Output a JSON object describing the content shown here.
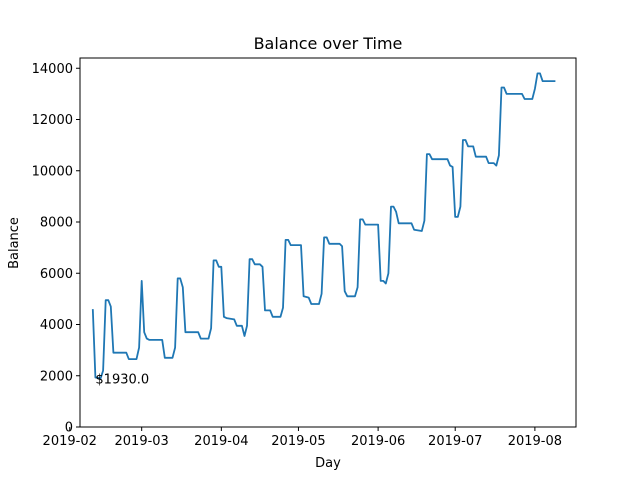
{
  "chart_data": {
    "type": "line",
    "title": "Balance over Time",
    "xlabel": "Day",
    "ylabel": "Balance",
    "xlim": [
      "2019-02-05",
      "2019-08-17"
    ],
    "ylim": [
      0,
      14400
    ],
    "grid": false,
    "line_color": "#1f77b4",
    "x_ticks": [
      {
        "value": "2019-02-01",
        "label": "2019-02"
      },
      {
        "value": "2019-03-01",
        "label": "2019-03"
      },
      {
        "value": "2019-04-01",
        "label": "2019-04"
      },
      {
        "value": "2019-05-01",
        "label": "2019-05"
      },
      {
        "value": "2019-06-01",
        "label": "2019-06"
      },
      {
        "value": "2019-07-01",
        "label": "2019-07"
      },
      {
        "value": "2019-08-01",
        "label": "2019-08"
      }
    ],
    "y_ticks": [
      {
        "value": 0,
        "label": "0"
      },
      {
        "value": 2000,
        "label": "2000"
      },
      {
        "value": 4000,
        "label": "4000"
      },
      {
        "value": 6000,
        "label": "6000"
      },
      {
        "value": 8000,
        "label": "8000"
      },
      {
        "value": 10000,
        "label": "10000"
      },
      {
        "value": 12000,
        "label": "12000"
      },
      {
        "value": 14000,
        "label": "14000"
      }
    ],
    "annotation": {
      "text": "$1930.0",
      "x": "2019-02-11",
      "y": 1930
    },
    "series": [
      {
        "points": [
          [
            "2019-02-10",
            4600
          ],
          [
            "2019-02-11",
            1930
          ],
          [
            "2019-02-13",
            1900
          ],
          [
            "2019-02-14",
            2200
          ],
          [
            "2019-02-15",
            4950
          ],
          [
            "2019-02-16",
            4950
          ],
          [
            "2019-02-17",
            4700
          ],
          [
            "2019-02-18",
            2900
          ],
          [
            "2019-02-22",
            2900
          ],
          [
            "2019-02-23",
            2900
          ],
          [
            "2019-02-24",
            2650
          ],
          [
            "2019-02-27",
            2650
          ],
          [
            "2019-02-28",
            3100
          ],
          [
            "2019-03-01",
            5700
          ],
          [
            "2019-03-02",
            3700
          ],
          [
            "2019-03-03",
            3450
          ],
          [
            "2019-03-04",
            3400
          ],
          [
            "2019-03-09",
            3400
          ],
          [
            "2019-03-10",
            2700
          ],
          [
            "2019-03-13",
            2700
          ],
          [
            "2019-03-14",
            3100
          ],
          [
            "2019-03-15",
            5800
          ],
          [
            "2019-03-16",
            5800
          ],
          [
            "2019-03-17",
            5450
          ],
          [
            "2019-03-18",
            3700
          ],
          [
            "2019-03-23",
            3700
          ],
          [
            "2019-03-24",
            3450
          ],
          [
            "2019-03-27",
            3450
          ],
          [
            "2019-03-28",
            3850
          ],
          [
            "2019-03-29",
            6500
          ],
          [
            "2019-03-30",
            6500
          ],
          [
            "2019-03-31",
            6250
          ],
          [
            "2019-04-01",
            6250
          ],
          [
            "2019-04-02",
            4300
          ],
          [
            "2019-04-03",
            4250
          ],
          [
            "2019-04-06",
            4200
          ],
          [
            "2019-04-07",
            3950
          ],
          [
            "2019-04-09",
            3950
          ],
          [
            "2019-04-10",
            3550
          ],
          [
            "2019-04-11",
            3950
          ],
          [
            "2019-04-12",
            6550
          ],
          [
            "2019-04-13",
            6550
          ],
          [
            "2019-04-14",
            6350
          ],
          [
            "2019-04-16",
            6350
          ],
          [
            "2019-04-17",
            6250
          ],
          [
            "2019-04-18",
            4550
          ],
          [
            "2019-04-20",
            4550
          ],
          [
            "2019-04-21",
            4300
          ],
          [
            "2019-04-24",
            4300
          ],
          [
            "2019-04-25",
            4650
          ],
          [
            "2019-04-26",
            7300
          ],
          [
            "2019-04-27",
            7300
          ],
          [
            "2019-04-28",
            7100
          ],
          [
            "2019-05-02",
            7100
          ],
          [
            "2019-05-03",
            5100
          ],
          [
            "2019-05-05",
            5050
          ],
          [
            "2019-05-06",
            4800
          ],
          [
            "2019-05-09",
            4800
          ],
          [
            "2019-05-10",
            5200
          ],
          [
            "2019-05-11",
            7400
          ],
          [
            "2019-05-12",
            7400
          ],
          [
            "2019-05-13",
            7150
          ],
          [
            "2019-05-17",
            7150
          ],
          [
            "2019-05-18",
            7050
          ],
          [
            "2019-05-19",
            5300
          ],
          [
            "2019-05-20",
            5100
          ],
          [
            "2019-05-23",
            5100
          ],
          [
            "2019-05-24",
            5450
          ],
          [
            "2019-05-25",
            8100
          ],
          [
            "2019-05-26",
            8100
          ],
          [
            "2019-05-27",
            7900
          ],
          [
            "2019-06-01",
            7900
          ],
          [
            "2019-06-02",
            5700
          ],
          [
            "2019-06-03",
            5700
          ],
          [
            "2019-06-04",
            5600
          ],
          [
            "2019-06-05",
            6000
          ],
          [
            "2019-06-06",
            8600
          ],
          [
            "2019-06-07",
            8600
          ],
          [
            "2019-06-08",
            8400
          ],
          [
            "2019-06-09",
            7950
          ],
          [
            "2019-06-14",
            7950
          ],
          [
            "2019-06-15",
            7700
          ],
          [
            "2019-06-18",
            7650
          ],
          [
            "2019-06-19",
            8050
          ],
          [
            "2019-06-20",
            10650
          ],
          [
            "2019-06-21",
            10650
          ],
          [
            "2019-06-22",
            10450
          ],
          [
            "2019-06-28",
            10450
          ],
          [
            "2019-06-29",
            10200
          ],
          [
            "2019-06-30",
            10150
          ],
          [
            "2019-07-01",
            8200
          ],
          [
            "2019-07-02",
            8200
          ],
          [
            "2019-07-03",
            8600
          ],
          [
            "2019-07-04",
            11200
          ],
          [
            "2019-07-05",
            11200
          ],
          [
            "2019-07-06",
            10950
          ],
          [
            "2019-07-08",
            10950
          ],
          [
            "2019-07-09",
            10550
          ],
          [
            "2019-07-13",
            10550
          ],
          [
            "2019-07-14",
            10300
          ],
          [
            "2019-07-16",
            10300
          ],
          [
            "2019-07-17",
            10200
          ],
          [
            "2019-07-18",
            10600
          ],
          [
            "2019-07-19",
            13250
          ],
          [
            "2019-07-20",
            13250
          ],
          [
            "2019-07-21",
            13000
          ],
          [
            "2019-07-27",
            13000
          ],
          [
            "2019-07-28",
            12800
          ],
          [
            "2019-07-31",
            12800
          ],
          [
            "2019-08-01",
            13200
          ],
          [
            "2019-08-02",
            13800
          ],
          [
            "2019-08-03",
            13800
          ],
          [
            "2019-08-04",
            13500
          ],
          [
            "2019-08-09",
            13500
          ]
        ]
      }
    ]
  }
}
